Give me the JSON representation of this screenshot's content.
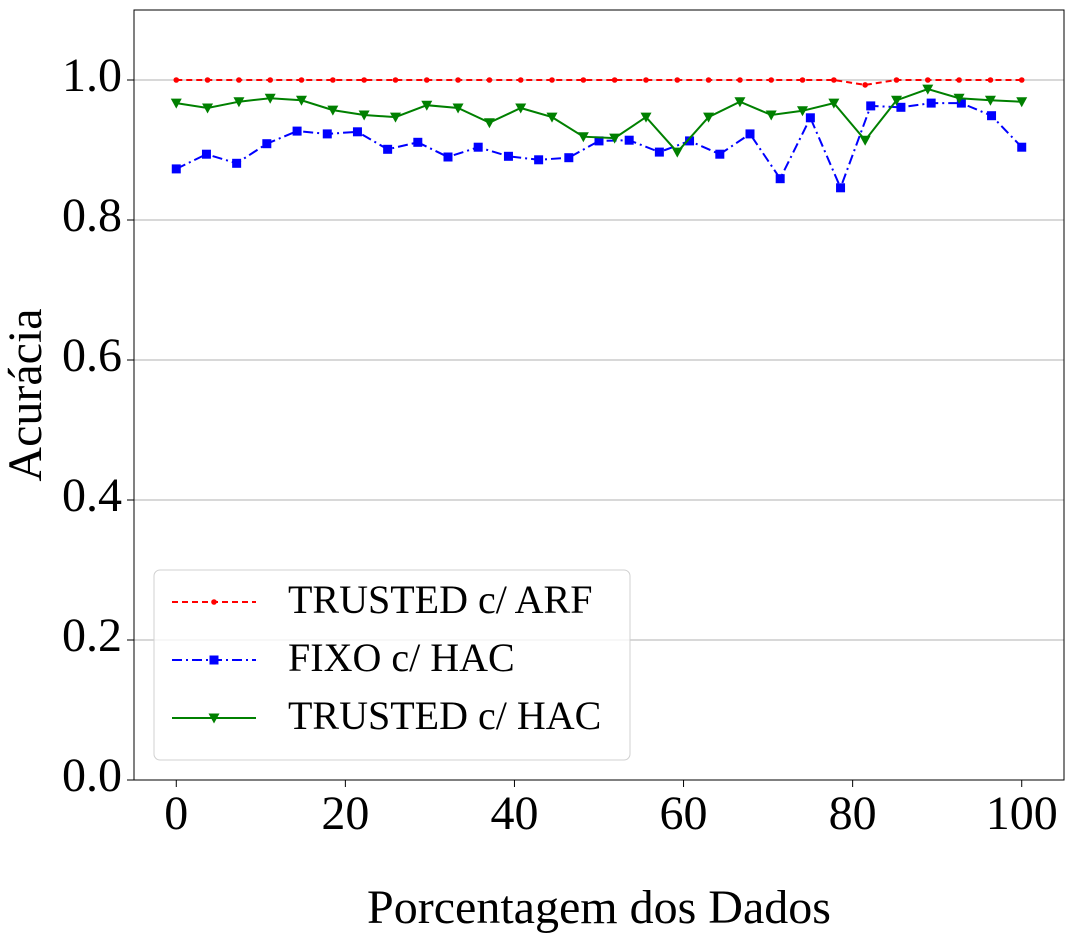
{
  "chart_data": {
    "type": "line",
    "xlabel": "Porcentagem dos Dados",
    "ylabel": "Acurácia",
    "xlim": [
      -5,
      105
    ],
    "ylim": [
      0,
      1.1
    ],
    "xticks": [
      0,
      20,
      40,
      60,
      80,
      100
    ],
    "yticks": [
      {
        "value": 0,
        "label": "0.0"
      },
      {
        "value": 0.2,
        "label": "0.2"
      },
      {
        "value": 0.4,
        "label": "0.4"
      },
      {
        "value": 0.6,
        "label": "0.6"
      },
      {
        "value": 0.8,
        "label": "0.8"
      },
      {
        "value": 1.0,
        "label": "1.0"
      }
    ],
    "grid": "y",
    "legend": "lower left",
    "series": [
      {
        "name": "TRUSTED c/ ARF",
        "color": "#ff0000",
        "linestyle": "dashed",
        "marker": "dot",
        "x": [
          0,
          3.7,
          7.41,
          11.11,
          14.81,
          18.52,
          22.22,
          25.93,
          29.63,
          33.33,
          37.04,
          40.74,
          44.44,
          48.15,
          51.85,
          55.56,
          59.26,
          62.96,
          66.67,
          70.37,
          74.07,
          77.78,
          81.48,
          85.19,
          88.89,
          92.59,
          96.3,
          100
        ],
        "values": [
          1,
          1,
          1,
          1,
          1,
          1,
          1,
          1,
          1,
          1,
          1,
          1,
          1,
          1,
          1,
          1,
          1,
          1,
          1,
          1,
          1,
          1,
          0.993,
          1,
          1,
          1,
          1,
          1
        ]
      },
      {
        "name": "FIXO c/ HAC",
        "color": "#0000ff",
        "linestyle": "dashdot",
        "marker": "square",
        "x": [
          0,
          3.57,
          7.14,
          10.71,
          14.29,
          17.86,
          21.43,
          25,
          28.57,
          32.14,
          35.71,
          39.29,
          42.86,
          46.43,
          50,
          53.57,
          57.14,
          60.71,
          64.29,
          67.86,
          71.43,
          75,
          78.57,
          82.14,
          85.71,
          89.29,
          92.86,
          96.43,
          100
        ],
        "values": [
          0.873,
          0.894,
          0.881,
          0.909,
          0.927,
          0.923,
          0.926,
          0.901,
          0.911,
          0.89,
          0.904,
          0.891,
          0.886,
          0.889,
          0.913,
          0.914,
          0.897,
          0.913,
          0.894,
          0.923,
          0.859,
          0.946,
          0.846,
          0.963,
          0.961,
          0.967,
          0.967,
          0.949,
          0.904
        ]
      },
      {
        "name": "TRUSTED c/ HAC",
        "color": "#008000",
        "linestyle": "solid",
        "marker": "triangle-down",
        "x": [
          0,
          3.7,
          7.41,
          11.11,
          14.81,
          18.52,
          22.22,
          25.93,
          29.63,
          33.33,
          37.04,
          40.74,
          44.44,
          48.15,
          51.85,
          55.56,
          59.26,
          62.96,
          66.67,
          70.37,
          74.07,
          77.78,
          81.48,
          85.19,
          88.89,
          92.59,
          96.3,
          100
        ],
        "values": [
          0.967,
          0.96,
          0.969,
          0.974,
          0.971,
          0.957,
          0.95,
          0.947,
          0.964,
          0.96,
          0.939,
          0.96,
          0.947,
          0.919,
          0.917,
          0.947,
          0.897,
          0.947,
          0.969,
          0.95,
          0.956,
          0.967,
          0.914,
          0.971,
          0.987,
          0.974,
          0.971,
          0.969
        ]
      }
    ]
  }
}
